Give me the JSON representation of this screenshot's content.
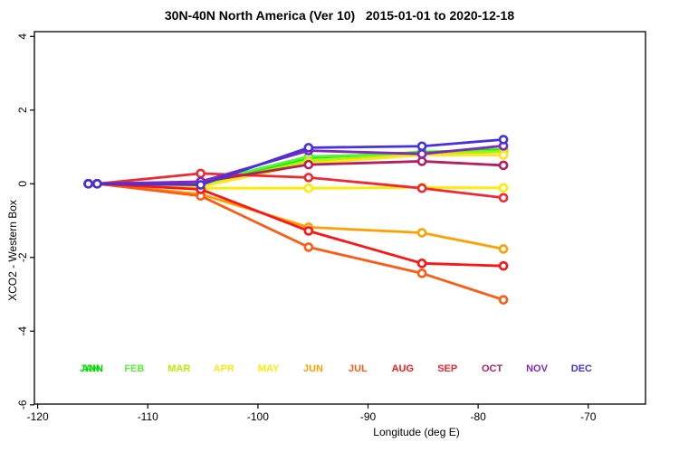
{
  "chart_data": {
    "type": "line",
    "title": "30N-40N North America (Ver 10)   2015-01-01 to 2020-12-18",
    "xlabel": "Longitude (deg E)",
    "ylabel": "XCO2 - Western Box",
    "xlim": [
      -120.3,
      -64.8
    ],
    "ylim": [
      -5.98,
      4.13
    ],
    "xticks": [
      -120,
      -110,
      -100,
      -90,
      -80,
      -70
    ],
    "yticks": [
      -6,
      -4,
      -2,
      0,
      2,
      4
    ],
    "grid": false,
    "legend_position": "inside-bottom-row",
    "marker": "open-circle",
    "x": [
      -115.4,
      -114.6,
      -105.2,
      -95.4,
      -85.1,
      -77.7
    ],
    "series": [
      {
        "name": "ANN",
        "color": "#00c800",
        "legend_slot": 0,
        "values": [
          0,
          0,
          0.0,
          0.72,
          0.84,
          0.91
        ]
      },
      {
        "name": "JAN",
        "color": "#00f000",
        "legend_slot": 0,
        "values": [
          0,
          0,
          -0.02,
          0.7,
          0.86,
          0.93
        ]
      },
      {
        "name": "FEB",
        "color": "#5af03c",
        "legend_slot": 1,
        "values": [
          0,
          0,
          0.02,
          0.74,
          0.82,
          0.9
        ]
      },
      {
        "name": "MAR",
        "color": "#b4f000",
        "legend_slot": 2,
        "values": [
          0,
          0,
          -0.05,
          0.62,
          0.8,
          0.87
        ]
      },
      {
        "name": "APR",
        "color": "#ffe41e",
        "legend_slot": 3,
        "values": [
          0,
          0,
          -0.08,
          0.55,
          0.78,
          0.78
        ]
      },
      {
        "name": "MAY",
        "color": "#ffec00",
        "legend_slot": 4,
        "values": [
          0,
          0,
          -0.12,
          -0.12,
          -0.1,
          -0.11
        ]
      },
      {
        "name": "JUN",
        "color": "#ffa000",
        "legend_slot": 5,
        "values": [
          0,
          0,
          -0.28,
          -1.18,
          -1.33,
          -1.77
        ]
      },
      {
        "name": "JUL",
        "color": "#ff5a14",
        "legend_slot": 6,
        "values": [
          0,
          0,
          -0.33,
          -1.72,
          -2.43,
          -3.15
        ]
      },
      {
        "name": "AUG",
        "color": "#ff1414",
        "legend_slot": 7,
        "values": [
          0,
          0,
          -0.15,
          -1.28,
          -2.16,
          -2.23
        ]
      },
      {
        "name": "SEP",
        "color": "#f02832",
        "legend_slot": 8,
        "values": [
          0,
          0,
          0.28,
          0.17,
          -0.12,
          -0.38
        ]
      },
      {
        "name": "OCT",
        "color": "#b41e64",
        "legend_slot": 9,
        "values": [
          0,
          0,
          0.05,
          0.52,
          0.61,
          0.5
        ]
      },
      {
        "name": "NOV",
        "color": "#8228be",
        "legend_slot": 10,
        "values": [
          0,
          0,
          0.06,
          0.9,
          0.81,
          1.03
        ]
      },
      {
        "name": "DEC",
        "color": "#4632dc",
        "legend_slot": 11,
        "values": [
          0,
          0,
          -0.03,
          0.98,
          1.02,
          1.2
        ]
      }
    ]
  }
}
